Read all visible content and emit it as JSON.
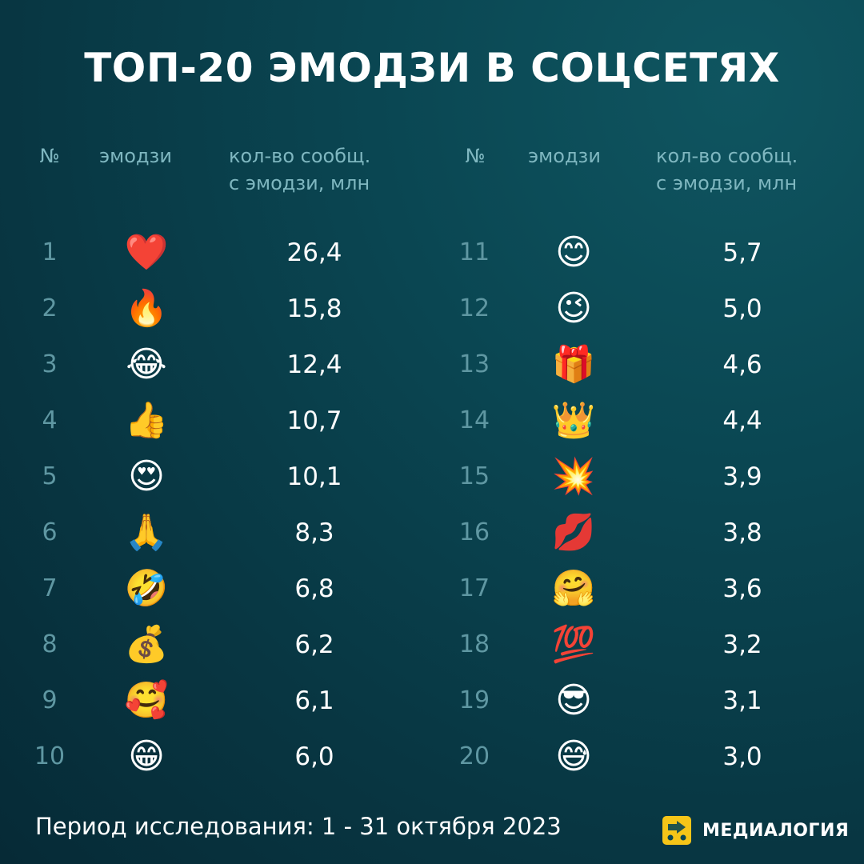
{
  "title": "ТОП-20 ЭМОДЗИ В СОЦСЕТЯХ",
  "columns": {
    "num": "№",
    "emoji": "эмодзи",
    "count_line1": "кол-во сообщ.",
    "count_line2": "с эмодзи, млн"
  },
  "rows": [
    {
      "num": "1",
      "emoji": "❤️",
      "value": "26,4"
    },
    {
      "num": "2",
      "emoji": "🔥",
      "value": "15,8"
    },
    {
      "num": "3",
      "emoji": "😂",
      "value": "12,4"
    },
    {
      "num": "4",
      "emoji": "👍",
      "value": "10,7"
    },
    {
      "num": "5",
      "emoji": "😍",
      "value": "10,1"
    },
    {
      "num": "6",
      "emoji": "🙏",
      "value": "8,3"
    },
    {
      "num": "7",
      "emoji": "🤣",
      "value": "6,8"
    },
    {
      "num": "8",
      "emoji": "💰",
      "value": "6,2"
    },
    {
      "num": "9",
      "emoji": "🥰",
      "value": "6,1"
    },
    {
      "num": "10",
      "emoji": "😁",
      "value": "6,0"
    },
    {
      "num": "11",
      "emoji": "😊",
      "value": "5,7"
    },
    {
      "num": "12",
      "emoji": "😉",
      "value": "5,0"
    },
    {
      "num": "13",
      "emoji": "🎁",
      "value": "4,6"
    },
    {
      "num": "14",
      "emoji": "👑",
      "value": "4,4"
    },
    {
      "num": "15",
      "emoji": "💥",
      "value": "3,9"
    },
    {
      "num": "16",
      "emoji": "💋",
      "value": "3,8"
    },
    {
      "num": "17",
      "emoji": "🤗",
      "value": "3,6"
    },
    {
      "num": "18",
      "emoji": "💯",
      "value": "3,2"
    },
    {
      "num": "19",
      "emoji": "😎",
      "value": "3,1"
    },
    {
      "num": "20",
      "emoji": "😅",
      "value": "3,0"
    }
  ],
  "footer": "Период исследования: 1 - 31 октября 2023",
  "brand": {
    "name": "МЕДИАЛОГИЯ",
    "logo_icon": "medialogia-logo-icon",
    "logo_color": "#f5c518"
  },
  "colors": {
    "background": "#0a4652",
    "header_text": "#7fb7c0",
    "rank_number": "#5f97a2",
    "value_text": "#ffffff"
  }
}
